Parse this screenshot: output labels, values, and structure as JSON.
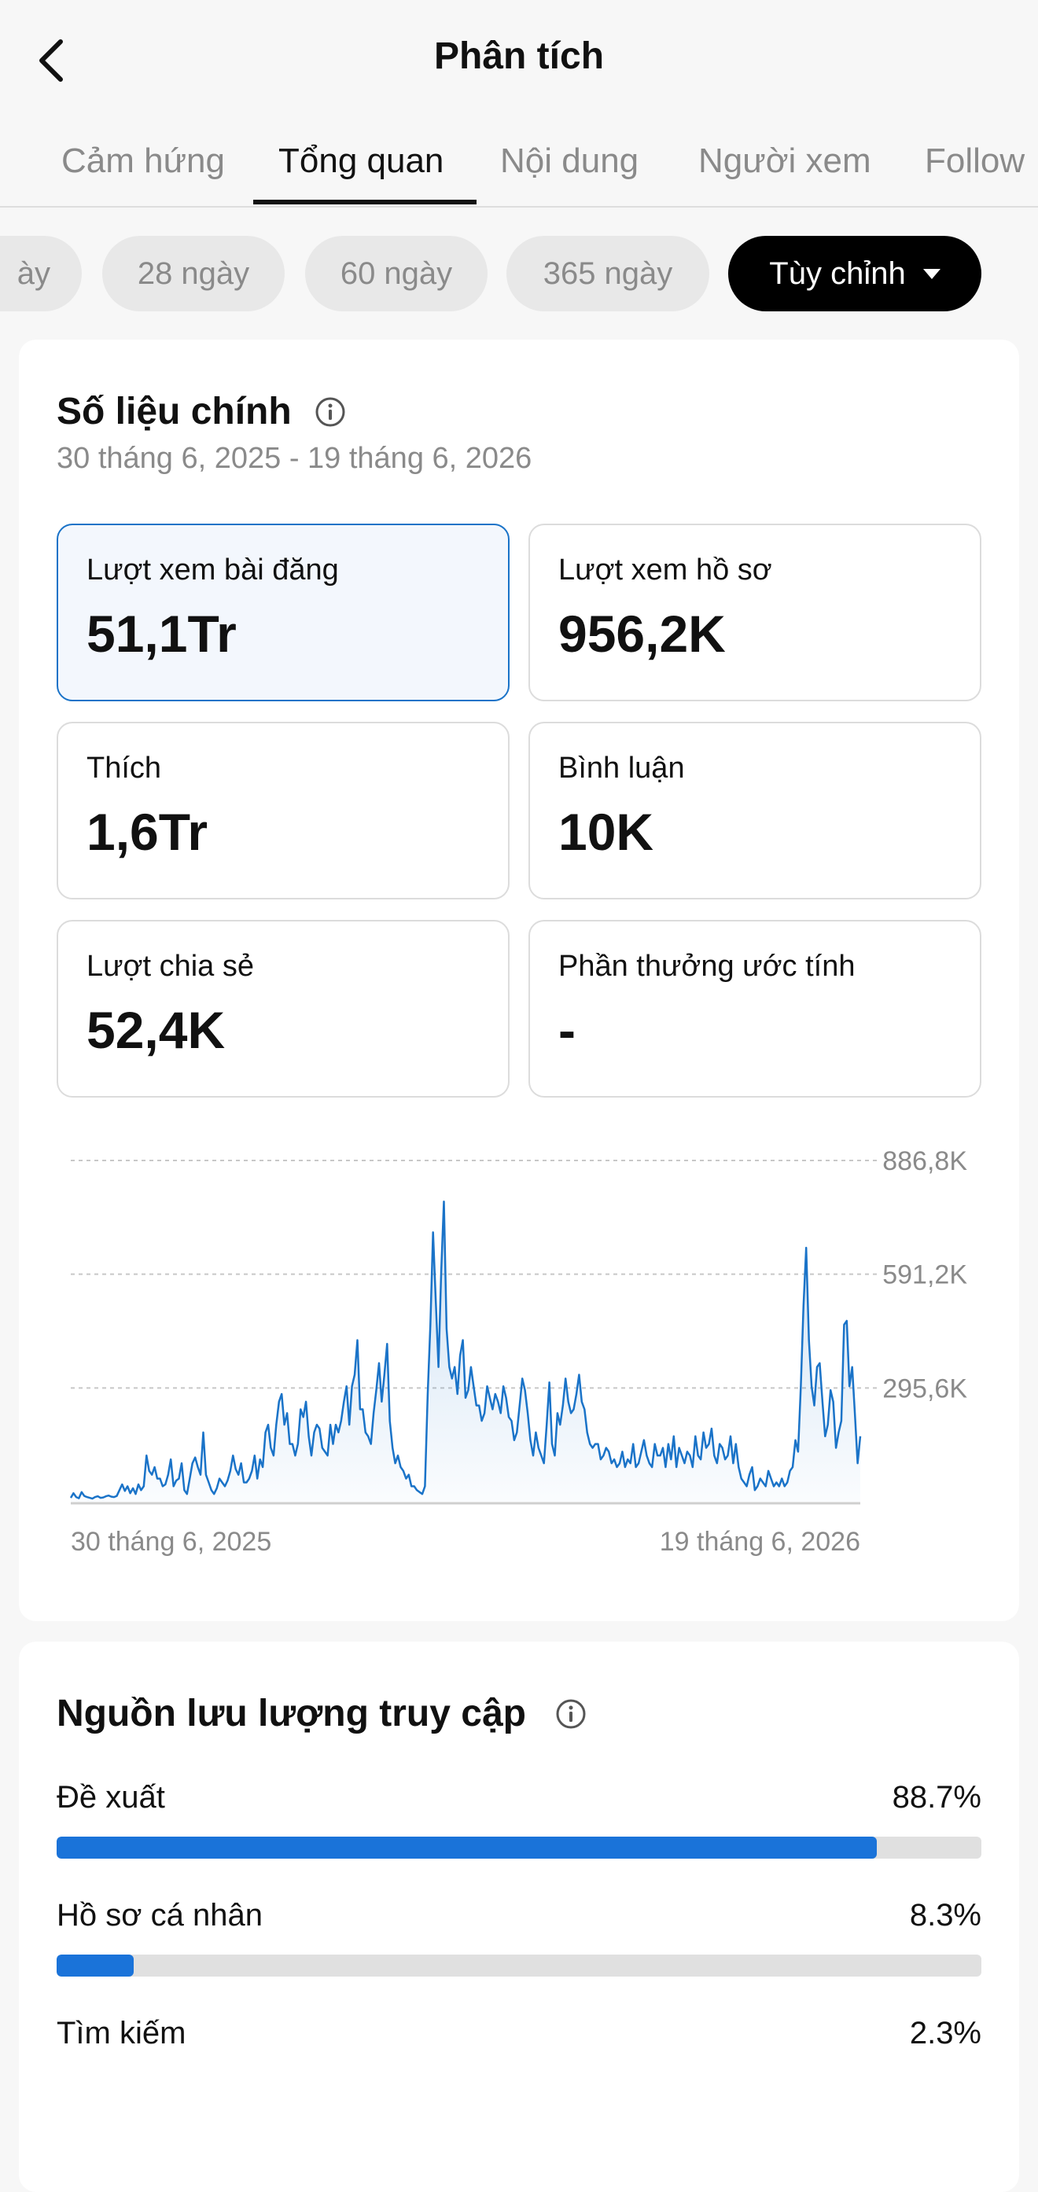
{
  "header": {
    "title": "Phân tích",
    "back_icon": "chevron-left-icon"
  },
  "tabs": [
    {
      "label": "Cảm hứng"
    },
    {
      "label": "Tổng quan",
      "active": true
    },
    {
      "label": "Nội dung"
    },
    {
      "label": "Người xem"
    },
    {
      "label": "Follow"
    }
  ],
  "date_chips": [
    {
      "label": "ày"
    },
    {
      "label": "28 ngày"
    },
    {
      "label": "60 ngày"
    },
    {
      "label": "365 ngày"
    },
    {
      "label": "Tùy chỉnh",
      "selected": true
    }
  ],
  "key_metrics": {
    "title": "Số liệu chính",
    "date_range": "30 tháng 6, 2025 - 19 tháng 6, 2026",
    "items": [
      {
        "label": "Lượt xem bài đăng",
        "value": "51,1Tr"
      },
      {
        "label": "Lượt xem hồ sơ",
        "value": "956,2K"
      },
      {
        "label": "Thích",
        "value": "1,6Tr"
      },
      {
        "label": "Bình luận",
        "value": "10K"
      },
      {
        "label": "Lượt chia sẻ",
        "value": "52,4K"
      },
      {
        "label": "Phần thưởng ước tính",
        "value": "-"
      }
    ]
  },
  "chart_data": {
    "type": "area",
    "series": [
      {
        "values": [
          10,
          22,
          12,
          9,
          25,
          15,
          12,
          10,
          8,
          12,
          14,
          10,
          11,
          14,
          16,
          13,
          12,
          15,
          30,
          45,
          28,
          40,
          22,
          35,
          20,
          45,
          30,
          40,
          120,
          80,
          70,
          90,
          60,
          60,
          40,
          45,
          70,
          110,
          40,
          55,
          60,
          100,
          30,
          20,
          60,
          100,
          115,
          90,
          70,
          180,
          70,
          50,
          30,
          20,
          35,
          60,
          50,
          40,
          55,
          80,
          120,
          85,
          70,
          100,
          50,
          50,
          60,
          80,
          120,
          60,
          110,
          90,
          180,
          200,
          140,
          120,
          200,
          260,
          280,
          200,
          230,
          150,
          150,
          120,
          150,
          240,
          220,
          260,
          170,
          120,
          180,
          200,
          190,
          140,
          130,
          120,
          200,
          150,
          200,
          180,
          210,
          260,
          300,
          200,
          300,
          330,
          420,
          240,
          240,
          180,
          170,
          150,
          230,
          290,
          360,
          260,
          330,
          410,
          210,
          140,
          100,
          120,
          90,
          80,
          60,
          70,
          40,
          40,
          30,
          25,
          20,
          40,
          280,
          460,
          700,
          520,
          350,
          600,
          780,
          450,
          350,
          320,
          350,
          280,
          380,
          420,
          270,
          290,
          350,
          300,
          250,
          250,
          210,
          230,
          300,
          270,
          240,
          280,
          260,
          230,
          300,
          270,
          220,
          210,
          160,
          180,
          250,
          320,
          290,
          230,
          160,
          120,
          180,
          140,
          120,
          100,
          200,
          310,
          150,
          120,
          230,
          200,
          250,
          320,
          260,
          230,
          240,
          280,
          330,
          260,
          240,
          180,
          150,
          140,
          150,
          150,
          110,
          120,
          140,
          130,
          100,
          110,
          90,
          100,
          130,
          90,
          110,
          100,
          150,
          90,
          100,
          130,
          160,
          120,
          100,
          90,
          150,
          120,
          120,
          140,
          90,
          150,
          110,
          170,
          90,
          140,
          120,
          100,
          130,
          120,
          90,
          170,
          120,
          110,
          180,
          140,
          150,
          190,
          120,
          100,
          150,
          140,
          110,
          120,
          170,
          100,
          150,
          90,
          60,
          50,
          40,
          70,
          90,
          30,
          40,
          60,
          50,
          40,
          80,
          60,
          40,
          50,
          40,
          60,
          40,
          50,
          80,
          90,
          160,
          130,
          300,
          510,
          660,
          420,
          300,
          250,
          350,
          360,
          260,
          170,
          200,
          290,
          260,
          140,
          180,
          210,
          460,
          470,
          300,
          350,
          230,
          100,
          170
        ]
      }
    ],
    "x_tick_labels": [
      "30 tháng 6, 2025",
      "19 tháng 6, 2026"
    ],
    "y_tick_labels": [
      "886,8K",
      "591,2K",
      "295,6K"
    ],
    "y_ticks": [
      886800,
      591200,
      295600
    ],
    "ylim": [
      0,
      886800
    ],
    "value_unit": "thousands",
    "grid": "horizontal-dashed",
    "color": "#1a73c8"
  },
  "traffic": {
    "title": "Nguồn lưu lượng truy cập",
    "items": [
      {
        "label": "Đề xuất",
        "value": "88.7%",
        "fraction": 0.887
      },
      {
        "label": "Hồ sơ cá nhân",
        "value": "8.3%",
        "fraction": 0.083
      },
      {
        "label": "Tìm kiếm",
        "value": "2.3%",
        "fraction": 0.023
      }
    ]
  }
}
